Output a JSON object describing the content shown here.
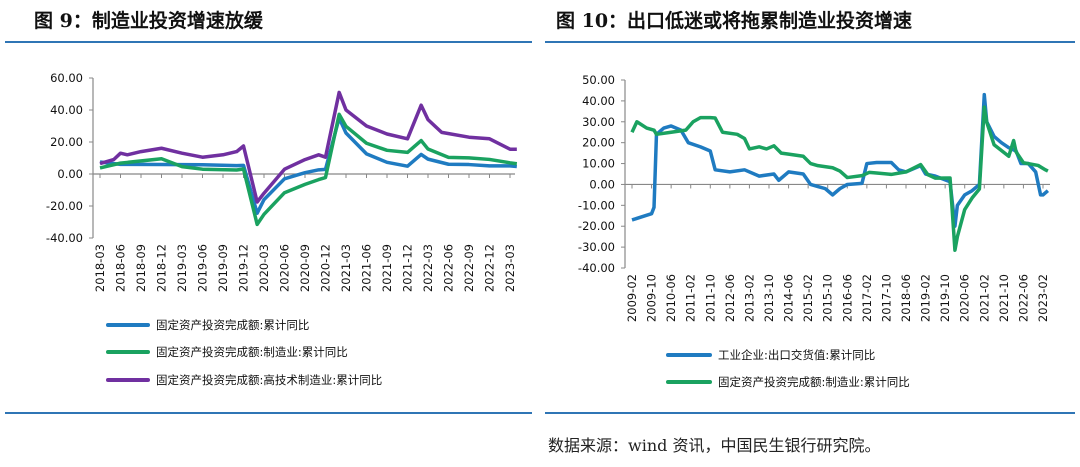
{
  "source": "数据来源：wind 资讯，中国民生银行研究院。",
  "chart_data": [
    {
      "title": "图 9：制造业投资增速放缓",
      "type": "line",
      "ylim": [
        -40,
        60
      ],
      "yticks": [
        60,
        40,
        20,
        0,
        -20,
        -40
      ],
      "xticks": [
        "2018-03",
        "2018-06",
        "2018-09",
        "2018-12",
        "2019-03",
        "2019-06",
        "2019-09",
        "2019-12",
        "2020-03",
        "2020-06",
        "2020-09",
        "2020-12",
        "2021-03",
        "2021-06",
        "2021-09",
        "2021-12",
        "2022-03",
        "2022-06",
        "2022-09",
        "2022-12",
        "2023-03"
      ],
      "legend": "bottom",
      "grid": false,
      "series": [
        {
          "name": "固定资产投资完成额:累计同比",
          "color": "#1f7bc1",
          "points": [
            [
              "2018-03",
              7.5
            ],
            [
              "2018-06",
              6
            ],
            [
              "2018-12",
              5.9
            ],
            [
              "2019-06",
              5.8
            ],
            [
              "2019-11",
              5.2
            ],
            [
              "2019-12",
              5.4
            ],
            [
              "2020-02",
              -24.5
            ],
            [
              "2020-03",
              -16
            ],
            [
              "2020-06",
              -3
            ],
            [
              "2020-09",
              0.8
            ],
            [
              "2020-11",
              2.6
            ],
            [
              "2020-12",
              2.9
            ],
            [
              "2021-02",
              35
            ],
            [
              "2021-03",
              25.6
            ],
            [
              "2021-06",
              12.6
            ],
            [
              "2021-09",
              7.3
            ],
            [
              "2021-12",
              4.9
            ],
            [
              "2022-02",
              12.2
            ],
            [
              "2022-03",
              9.3
            ],
            [
              "2022-06",
              6.1
            ],
            [
              "2022-09",
              5.9
            ],
            [
              "2022-12",
              5.1
            ],
            [
              "2023-03",
              5.1
            ],
            [
              "2023-04",
              4.7
            ]
          ]
        },
        {
          "name": "固定资产投资完成额:制造业:累计同比",
          "color": "#1aa260",
          "points": [
            [
              "2018-03",
              3.8
            ],
            [
              "2018-06",
              6.8
            ],
            [
              "2018-12",
              9.5
            ],
            [
              "2019-03",
              4.6
            ],
            [
              "2019-06",
              3
            ],
            [
              "2019-11",
              2.5
            ],
            [
              "2019-12",
              3.1
            ],
            [
              "2020-02",
              -31.5
            ],
            [
              "2020-03",
              -25.2
            ],
            [
              "2020-06",
              -11.7
            ],
            [
              "2020-09",
              -6.5
            ],
            [
              "2020-11",
              -3.5
            ],
            [
              "2020-12",
              -2.2
            ],
            [
              "2021-02",
              37.3
            ],
            [
              "2021-03",
              29.8
            ],
            [
              "2021-06",
              19.2
            ],
            [
              "2021-09",
              14.8
            ],
            [
              "2021-12",
              13.5
            ],
            [
              "2022-02",
              20.9
            ],
            [
              "2022-03",
              15.6
            ],
            [
              "2022-06",
              10.4
            ],
            [
              "2022-09",
              10.1
            ],
            [
              "2022-12",
              9.1
            ],
            [
              "2023-03",
              7
            ],
            [
              "2023-04",
              6.4
            ]
          ]
        },
        {
          "name": "固定资产投资完成额:高技术制造业:累计同比",
          "color": "#7030a0",
          "points": [
            [
              "2018-03",
              6.5
            ],
            [
              "2018-05",
              9
            ],
            [
              "2018-06",
              13
            ],
            [
              "2018-07",
              12
            ],
            [
              "2018-09",
              14
            ],
            [
              "2018-12",
              16.1
            ],
            [
              "2019-03",
              13
            ],
            [
              "2019-06",
              10.5
            ],
            [
              "2019-09",
              12
            ],
            [
              "2019-11",
              14
            ],
            [
              "2019-12",
              17.5
            ],
            [
              "2020-02",
              -17.5
            ],
            [
              "2020-03",
              -12
            ],
            [
              "2020-06",
              3
            ],
            [
              "2020-09",
              9
            ],
            [
              "2020-11",
              12
            ],
            [
              "2020-12",
              10.5
            ],
            [
              "2021-02",
              51
            ],
            [
              "2021-03",
              40
            ],
            [
              "2021-06",
              30
            ],
            [
              "2021-09",
              25
            ],
            [
              "2021-12",
              22
            ],
            [
              "2022-02",
              43
            ],
            [
              "2022-03",
              34
            ],
            [
              "2022-05",
              26
            ],
            [
              "2022-09",
              23
            ],
            [
              "2022-12",
              22
            ],
            [
              "2023-03",
              15.5
            ],
            [
              "2023-04",
              15.5
            ]
          ]
        }
      ]
    },
    {
      "title": "图 10：出口低迷或将拖累制造业投资增速",
      "type": "line",
      "ylim": [
        -40,
        50
      ],
      "yticks": [
        50,
        40,
        30,
        20,
        10,
        0,
        -10,
        -20,
        -30,
        -40
      ],
      "xticks": [
        "2009-02",
        "2009-10",
        "2010-06",
        "2011-02",
        "2011-10",
        "2012-06",
        "2013-02",
        "2013-10",
        "2014-06",
        "2015-02",
        "2015-10",
        "2016-06",
        "2017-02",
        "2017-10",
        "2018-06",
        "2019-02",
        "2019-10",
        "2020-06",
        "2021-02",
        "2021-10",
        "2022-06",
        "2023-02"
      ],
      "legend": "bottom",
      "grid": false,
      "series": [
        {
          "name": "工业企业:出口交货值:累计同比",
          "color": "#1f7bc1",
          "points": [
            [
              "2009-02",
              -17
            ],
            [
              "2009-06",
              -15.5
            ],
            [
              "2009-10",
              -14
            ],
            [
              "2009-11",
              -11
            ],
            [
              "2009-12",
              24
            ],
            [
              "2010-03",
              27
            ],
            [
              "2010-06",
              28
            ],
            [
              "2010-10",
              26
            ],
            [
              "2011-01",
              20
            ],
            [
              "2011-06",
              18
            ],
            [
              "2011-10",
              16
            ],
            [
              "2011-12",
              7
            ],
            [
              "2012-06",
              6
            ],
            [
              "2012-12",
              7
            ],
            [
              "2013-06",
              4
            ],
            [
              "2013-12",
              5
            ],
            [
              "2014-02",
              2
            ],
            [
              "2014-06",
              6
            ],
            [
              "2014-12",
              5
            ],
            [
              "2015-03",
              0
            ],
            [
              "2015-06",
              -1
            ],
            [
              "2015-09",
              -2
            ],
            [
              "2015-12",
              -5
            ],
            [
              "2016-03",
              -2
            ],
            [
              "2016-06",
              0
            ],
            [
              "2016-12",
              0.5
            ],
            [
              "2017-02",
              10
            ],
            [
              "2017-06",
              10.5
            ],
            [
              "2017-12",
              10.5
            ],
            [
              "2018-03",
              7
            ],
            [
              "2018-06",
              6
            ],
            [
              "2018-12",
              9
            ],
            [
              "2019-02",
              5
            ],
            [
              "2019-06",
              4
            ],
            [
              "2019-12",
              1.3
            ],
            [
              "2020-02",
              -20
            ],
            [
              "2020-03",
              -10
            ],
            [
              "2020-06",
              -5
            ],
            [
              "2020-09",
              -3
            ],
            [
              "2020-12",
              0
            ],
            [
              "2021-02",
              43
            ],
            [
              "2021-03",
              30
            ],
            [
              "2021-06",
              23
            ],
            [
              "2021-09",
              20
            ],
            [
              "2021-12",
              17.6
            ],
            [
              "2022-03",
              16
            ],
            [
              "2022-05",
              10
            ],
            [
              "2022-08",
              10
            ],
            [
              "2022-11",
              6
            ],
            [
              "2023-01",
              -5
            ],
            [
              "2023-02",
              -5
            ],
            [
              "2023-04",
              -3
            ]
          ]
        },
        {
          "name": "固定资产投资完成额:制造业:累计同比",
          "color": "#1aa260",
          "points": [
            [
              "2009-02",
              25
            ],
            [
              "2009-04",
              30
            ],
            [
              "2009-08",
              27
            ],
            [
              "2009-11",
              26
            ],
            [
              "2009-12",
              24
            ],
            [
              "2010-06",
              25
            ],
            [
              "2010-12",
              26
            ],
            [
              "2011-03",
              30
            ],
            [
              "2011-06",
              32
            ],
            [
              "2011-10",
              32
            ],
            [
              "2011-12",
              31.8
            ],
            [
              "2012-03",
              25
            ],
            [
              "2012-09",
              24
            ],
            [
              "2012-12",
              22
            ],
            [
              "2013-02",
              17
            ],
            [
              "2013-06",
              18
            ],
            [
              "2013-09",
              17
            ],
            [
              "2013-12",
              18.5
            ],
            [
              "2014-03",
              15
            ],
            [
              "2014-06",
              14.5
            ],
            [
              "2014-12",
              13.5
            ],
            [
              "2015-03",
              10
            ],
            [
              "2015-06",
              9
            ],
            [
              "2015-12",
              8
            ],
            [
              "2016-03",
              6.4
            ],
            [
              "2016-06",
              3.3
            ],
            [
              "2016-12",
              4.2
            ],
            [
              "2017-03",
              5.8
            ],
            [
              "2017-06",
              5.5
            ],
            [
              "2017-12",
              4.8
            ],
            [
              "2018-06",
              6
            ],
            [
              "2018-12",
              9.5
            ],
            [
              "2019-03",
              4.6
            ],
            [
              "2019-06",
              3
            ],
            [
              "2019-12",
              3.1
            ],
            [
              "2020-02",
              -31.5
            ],
            [
              "2020-03",
              -25
            ],
            [
              "2020-06",
              -12
            ],
            [
              "2020-09",
              -6.5
            ],
            [
              "2020-12",
              -2.2
            ],
            [
              "2021-02",
              37
            ],
            [
              "2021-03",
              29.8
            ],
            [
              "2021-06",
              19
            ],
            [
              "2021-12",
              13.5
            ],
            [
              "2022-02",
              21
            ],
            [
              "2022-03",
              15.6
            ],
            [
              "2022-06",
              10.4
            ],
            [
              "2022-12",
              9.1
            ],
            [
              "2023-03",
              7
            ],
            [
              "2023-04",
              6.4
            ]
          ]
        }
      ]
    }
  ]
}
